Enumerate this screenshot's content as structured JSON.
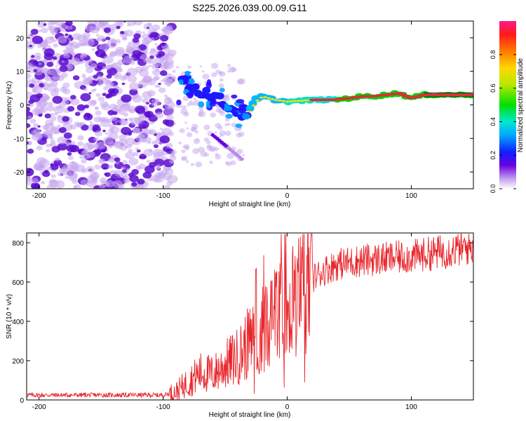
{
  "title": "S225.2026.039.00.09.G11",
  "colors": {
    "snr_line": "#e8242a",
    "ridge": "#e4283a",
    "scatter_dark": "#5b0ccf",
    "scatter_light": "#c6a6ef"
  },
  "chart_data": [
    {
      "type": "heatmap",
      "name": "spectrogram",
      "xlabel": "Height of straight line (km)",
      "ylabel": "Frequency (Hz)",
      "xlim": [
        -210,
        150
      ],
      "ylim": [
        -25,
        25
      ],
      "xticks": [
        -200,
        -100,
        0,
        100
      ],
      "xtick_labels": [
        "-200",
        "-100",
        "0",
        "100"
      ],
      "yticks": [
        20,
        10,
        0,
        -10,
        -20
      ],
      "ytick_labels": [
        "20",
        "10",
        "0",
        "-10",
        "-20"
      ],
      "colorbar": {
        "label": "Normalized spectral amplitude",
        "range": [
          0,
          1
        ],
        "ticks": [
          0.0,
          0.2,
          0.4,
          0.6,
          0.8
        ],
        "tick_labels": [
          "0.0",
          "0.2",
          "0.4",
          "0.6",
          "0.8"
        ]
      },
      "ridge": {
        "x": [
          -85,
          -75,
          -65,
          -55,
          -45,
          -38,
          -30,
          -25,
          -20,
          -10,
          0,
          10,
          20,
          30,
          40,
          50,
          60,
          70,
          80,
          90,
          100,
          110,
          120,
          130,
          140,
          150
        ],
        "y": [
          8,
          5,
          3.5,
          1.5,
          -1,
          -2.5,
          -2,
          1,
          2.5,
          1.5,
          1,
          1.2,
          1.5,
          1.5,
          1.6,
          2,
          2.5,
          2.6,
          3,
          3.5,
          2,
          3,
          3,
          3,
          3,
          3
        ]
      }
    },
    {
      "type": "line",
      "name": "snr",
      "xlabel": "Height of straight line (km)",
      "ylabel": "SNR (10 * v/v)",
      "xlim": [
        -210,
        150
      ],
      "ylim": [
        0,
        850
      ],
      "xticks": [
        -200,
        -100,
        0,
        100
      ],
      "xtick_labels": [
        "-200",
        "-100",
        "0",
        "100"
      ],
      "yticks": [
        0,
        200,
        400,
        600,
        800
      ],
      "ytick_labels": [
        "0",
        "200",
        "400",
        "600",
        "800"
      ],
      "envelope": {
        "x": [
          -210,
          -100,
          -90,
          -80,
          -70,
          -60,
          -50,
          -40,
          -30,
          -20,
          -10,
          0,
          10,
          20,
          30,
          40,
          60,
          80,
          100,
          120,
          150
        ],
        "y": [
          25,
          25,
          40,
          90,
          140,
          130,
          180,
          220,
          300,
          360,
          420,
          470,
          540,
          620,
          660,
          690,
          710,
          720,
          730,
          750,
          780
        ]
      }
    }
  ]
}
